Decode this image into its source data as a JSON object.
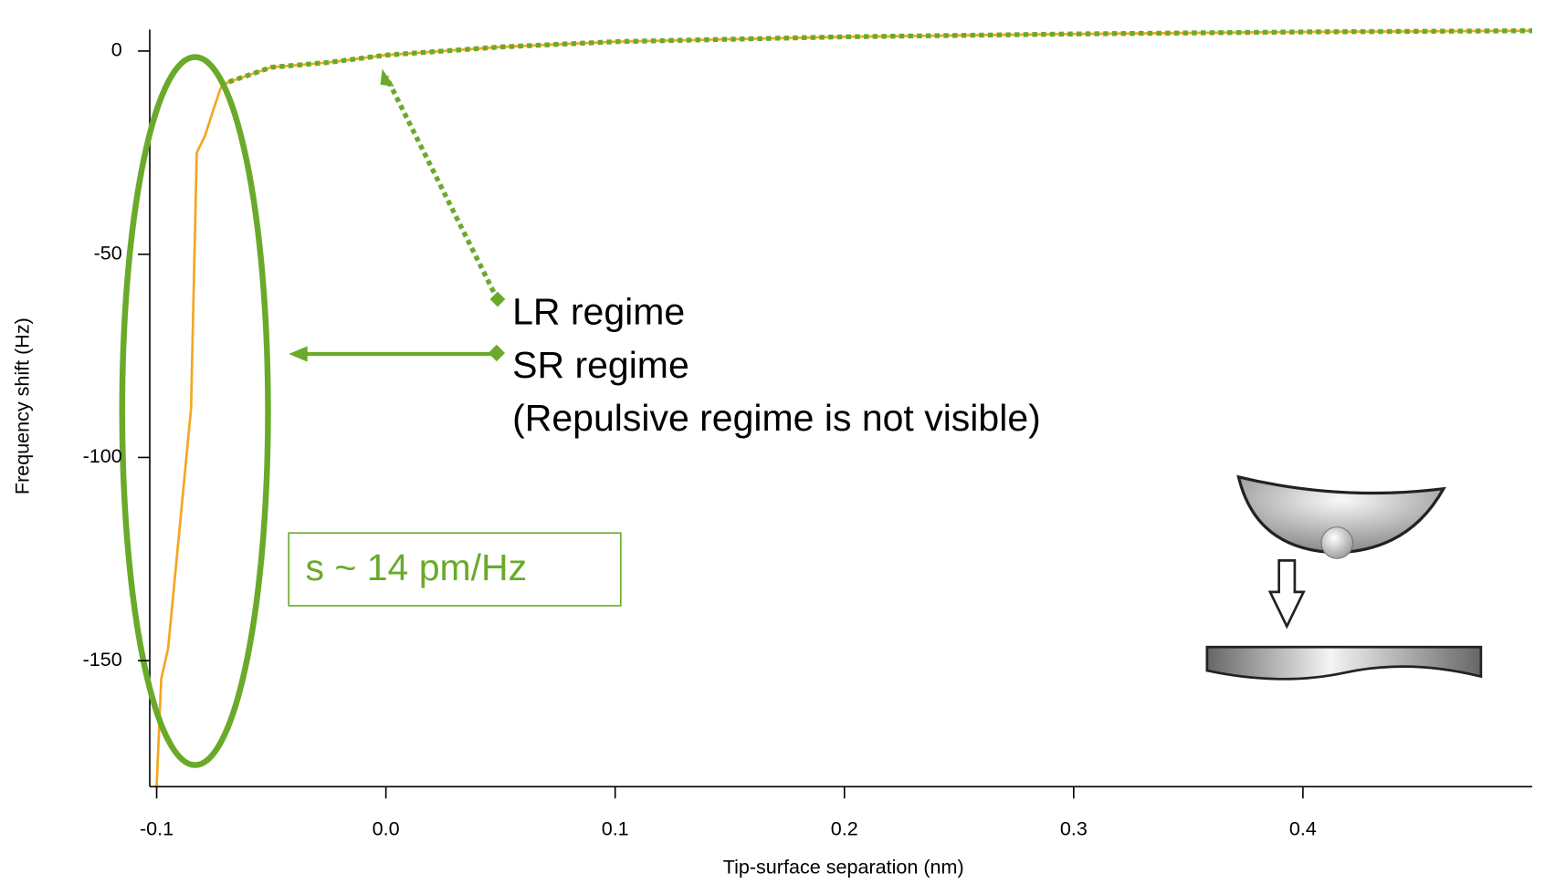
{
  "chart_data": {
    "type": "line",
    "xlabel": "Tip-surface separation (nm)",
    "ylabel": "Frequency shift (Hz)",
    "xlim": [
      -0.103,
      0.5
    ],
    "ylim": [
      -181,
      5.3
    ],
    "xticks": [
      -0.1,
      {
        "value": 0,
        "label": "0.0"
      },
      0.1,
      0.2,
      0.3,
      0.4
    ],
    "yticks": [
      0,
      -50,
      -100,
      -150
    ],
    "series": [
      {
        "color": "#f5a623",
        "style": "solid",
        "x": [
          -0.1,
          -0.098,
          -0.095,
          -0.085,
          -0.0825,
          -0.079,
          -0.075,
          -0.072,
          -0.069,
          -0.05,
          -0.025,
          0,
          0.05,
          0.1,
          0.2,
          0.3,
          0.4,
          0.5
        ],
        "values": [
          -181,
          -154.5,
          -147,
          -88,
          -25,
          -21,
          -14,
          -9,
          -7.7,
          -4,
          -2.8,
          -1,
          1,
          2.3,
          3.5,
          4.2,
          4.7,
          5
        ]
      },
      {
        "color": "#6aaa2a",
        "style": "dotted",
        "x": [
          -0.072,
          -0.069,
          -0.05,
          -0.025,
          0,
          0.05,
          0.1,
          0.2,
          0.3,
          0.4,
          0.5
        ],
        "values": [
          -8.5,
          -7.7,
          -4,
          -2.8,
          -1,
          1,
          2.3,
          3.5,
          4.2,
          4.7,
          5
        ]
      }
    ],
    "annotations": [
      "LR regime",
      "SR regime",
      "(Repulsive regime is not visible)",
      "s ~ 14 pm/Hz"
    ]
  }
}
